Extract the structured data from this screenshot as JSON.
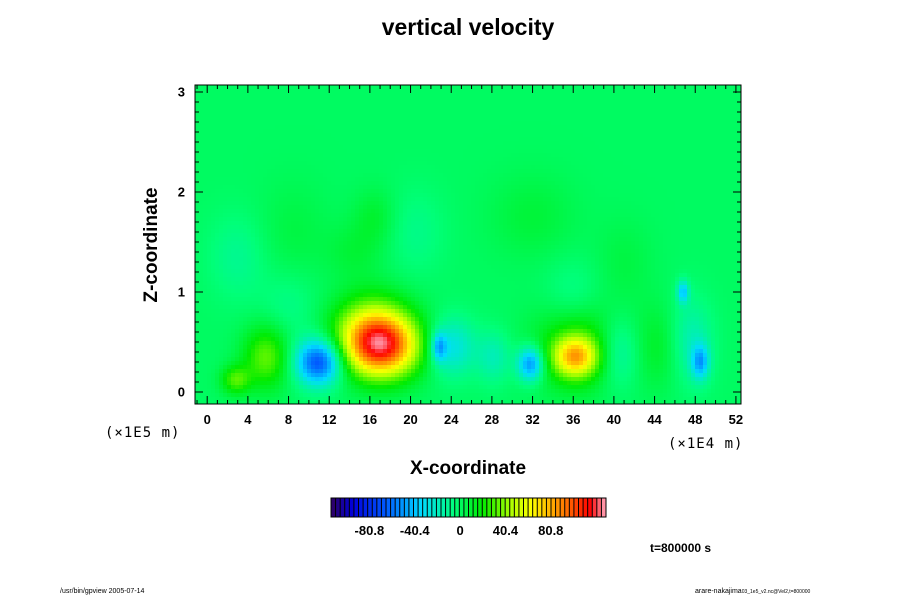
{
  "chart_data": {
    "type": "heatmap",
    "title": "vertical velocity",
    "xlabel": "X-coordinate",
    "ylabel": "Z-coordinate",
    "x_unit": "(×1E4 m)",
    "z_unit": "(×1E5 m)",
    "x_ticks": [
      "0",
      "4",
      "8",
      "12",
      "16",
      "20",
      "24",
      "28",
      "32",
      "36",
      "40",
      "44",
      "48",
      "52"
    ],
    "x_range": [
      -1.2,
      52.5
    ],
    "z_ticks": [
      "0",
      "1",
      "2",
      "3"
    ],
    "z_range": [
      -0.12,
      3.07
    ],
    "colorbar": {
      "ticks": [
        "-80.8",
        "-40.4",
        "0",
        "40.4",
        "80.8"
      ],
      "tick_values": [
        -80.8,
        -40.4,
        0,
        40.4,
        80.8
      ],
      "range": [
        -115,
        130
      ]
    },
    "background_value": 0,
    "features": [
      {
        "x": 17.2,
        "z": 0.45,
        "value": 92,
        "sx": 2.6,
        "sz": 0.22
      },
      {
        "x": 16.2,
        "z": 0.62,
        "value": 45,
        "sx": 2.6,
        "sz": 0.25
      },
      {
        "x": 11.0,
        "z": 0.3,
        "value": -72,
        "sx": 1.6,
        "sz": 0.16
      },
      {
        "x": 36.2,
        "z": 0.35,
        "value": 62,
        "sx": 1.5,
        "sz": 0.14
      },
      {
        "x": 36.5,
        "z": 0.45,
        "value": 28,
        "sx": 3.0,
        "sz": 0.3
      },
      {
        "x": 31.8,
        "z": 0.28,
        "value": -55,
        "sx": 0.9,
        "sz": 0.12
      },
      {
        "x": 5.8,
        "z": 0.35,
        "value": 34,
        "sx": 1.6,
        "sz": 0.22
      },
      {
        "x": 2.8,
        "z": 0.12,
        "value": 30,
        "sx": 1.0,
        "sz": 0.1
      },
      {
        "x": 24.0,
        "z": 0.45,
        "value": -30,
        "sx": 1.6,
        "sz": 0.2
      },
      {
        "x": 22.8,
        "z": 0.45,
        "value": -38,
        "sx": 0.5,
        "sz": 0.1
      },
      {
        "x": 28.2,
        "z": 0.35,
        "value": -18,
        "sx": 1.2,
        "sz": 0.18
      },
      {
        "x": 40.5,
        "z": 0.4,
        "value": -22,
        "sx": 1.5,
        "sz": 0.25
      },
      {
        "x": 44.5,
        "z": 0.45,
        "value": 12,
        "sx": 2.0,
        "sz": 0.3
      },
      {
        "x": 48.5,
        "z": 0.3,
        "value": -42,
        "sx": 0.6,
        "sz": 0.12
      },
      {
        "x": 47.5,
        "z": 0.5,
        "value": -20,
        "sx": 1.5,
        "sz": 0.3
      },
      {
        "x": 46.8,
        "z": 1.0,
        "value": -38,
        "sx": 0.4,
        "sz": 0.08
      },
      {
        "x": 14.5,
        "z": 1.4,
        "value": 8,
        "sx": 2.0,
        "sz": 0.2
      },
      {
        "x": 16.5,
        "z": 1.75,
        "value": 10,
        "sx": 1.5,
        "sz": 0.2
      },
      {
        "x": 20.5,
        "z": 1.6,
        "value": -8,
        "sx": 2.0,
        "sz": 0.3
      },
      {
        "x": 32.0,
        "z": 1.75,
        "value": 8,
        "sx": 3.0,
        "sz": 0.3
      },
      {
        "x": 3.0,
        "z": 1.35,
        "value": -10,
        "sx": 2.0,
        "sz": 0.3
      },
      {
        "x": 8.5,
        "z": 1.6,
        "value": 6,
        "sx": 2.5,
        "sz": 0.35
      },
      {
        "x": 41.0,
        "z": 1.3,
        "value": 6,
        "sx": 2.0,
        "sz": 0.3
      },
      {
        "x": 36.0,
        "z": 0.95,
        "value": -10,
        "sx": 2.0,
        "sz": 0.25
      },
      {
        "x": 8.0,
        "z": 0.85,
        "value": -8,
        "sx": 2.0,
        "sz": 0.25
      }
    ]
  },
  "time_label": "t=800000 s",
  "footer_left": "/usr/bin/gpview 2005-07-14",
  "footer_right_main": "arare-nakajima",
  "footer_right_small": "03_1e5_v2.nc@Vel2,t=800000"
}
